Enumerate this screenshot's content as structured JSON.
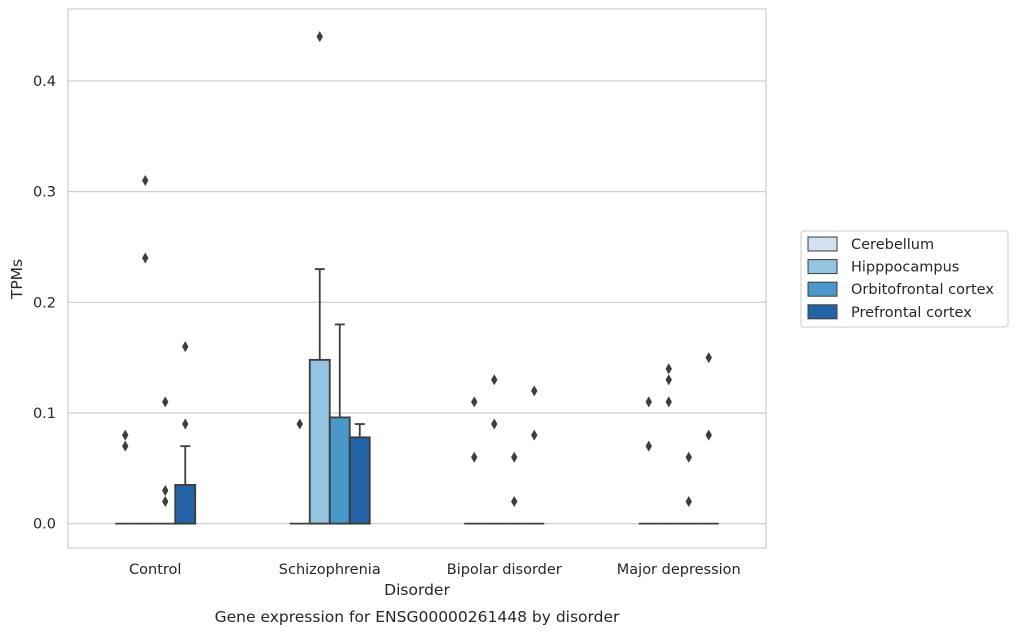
{
  "chart_data": {
    "type": "boxplot",
    "title": "",
    "caption": "Gene expression for ENSG00000261448 by disorder",
    "xlabel": "Disorder",
    "ylabel": "TPMs",
    "categories": [
      "Control",
      "Schizophrenia",
      "Bipolar disorder",
      "Major depression"
    ],
    "ylim": [
      -0.022,
      0.465
    ],
    "yticks": [
      0.0,
      0.1,
      0.2,
      0.3,
      0.4
    ],
    "ytick_labels": [
      "0.0",
      "0.1",
      "0.2",
      "0.3",
      "0.4"
    ],
    "grid": "horizontal",
    "legend_position": "center-right",
    "series": [
      {
        "name": "Cerebellum",
        "color": "#d0e1f2",
        "boxes": [
          {
            "q1": 0,
            "median": 0,
            "q3": 0,
            "whisker_low": 0,
            "whisker_high": 0,
            "outliers": [
              0.08,
              0.07
            ]
          },
          {
            "q1": 0,
            "median": 0,
            "q3": 0,
            "whisker_low": 0,
            "whisker_high": 0,
            "outliers": [
              0.09
            ]
          },
          {
            "q1": 0,
            "median": 0,
            "q3": 0,
            "whisker_low": 0,
            "whisker_high": 0,
            "outliers": [
              0.11,
              0.06
            ]
          },
          {
            "q1": 0,
            "median": 0,
            "q3": 0,
            "whisker_low": 0,
            "whisker_high": 0,
            "outliers": [
              0.11,
              0.07
            ]
          }
        ]
      },
      {
        "name": "Hipppocampus",
        "color": "#94c4df",
        "boxes": [
          {
            "q1": 0,
            "median": 0,
            "q3": 0,
            "whisker_low": 0,
            "whisker_high": 0,
            "outliers": [
              0.31,
              0.24
            ]
          },
          {
            "q1": 0,
            "median": 0,
            "q3": 0.148,
            "whisker_low": 0,
            "whisker_high": 0.23,
            "outliers": [
              0.44
            ]
          },
          {
            "q1": 0,
            "median": 0,
            "q3": 0,
            "whisker_low": 0,
            "whisker_high": 0,
            "outliers": [
              0.13,
              0.09
            ]
          },
          {
            "q1": 0,
            "median": 0,
            "q3": 0,
            "whisker_low": 0,
            "whisker_high": 0,
            "outliers": [
              0.14,
              0.13,
              0.11
            ]
          }
        ]
      },
      {
        "name": "Orbitofrontal cortex",
        "color": "#4a98c9",
        "boxes": [
          {
            "q1": 0,
            "median": 0,
            "q3": 0,
            "whisker_low": 0,
            "whisker_high": 0,
            "outliers": [
              0.11,
              0.03,
              0.02
            ]
          },
          {
            "q1": 0,
            "median": 0,
            "q3": 0.096,
            "whisker_low": 0,
            "whisker_high": 0.18,
            "outliers": []
          },
          {
            "q1": 0,
            "median": 0,
            "q3": 0,
            "whisker_low": 0,
            "whisker_high": 0,
            "outliers": [
              0.06,
              0.02
            ]
          },
          {
            "q1": 0,
            "median": 0,
            "q3": 0,
            "whisker_low": 0,
            "whisker_high": 0,
            "outliers": [
              0.06,
              0.02
            ]
          }
        ]
      },
      {
        "name": "Prefrontal cortex",
        "color": "#2363a6",
        "boxes": [
          {
            "q1": 0,
            "median": 0,
            "q3": 0.035,
            "whisker_low": 0,
            "whisker_high": 0.07,
            "outliers": [
              0.16,
              0.09
            ]
          },
          {
            "q1": 0,
            "median": 0,
            "q3": 0.078,
            "whisker_low": 0,
            "whisker_high": 0.09,
            "outliers": []
          },
          {
            "q1": 0,
            "median": 0,
            "q3": 0,
            "whisker_low": 0,
            "whisker_high": 0,
            "outliers": [
              0.12,
              0.08
            ]
          },
          {
            "q1": 0,
            "median": 0,
            "q3": 0,
            "whisker_low": 0,
            "whisker_high": 0,
            "outliers": [
              0.15,
              0.08
            ]
          }
        ]
      }
    ]
  },
  "colors": {
    "grid": "#cccccc",
    "frame": "#cccccc",
    "line": "#3d3d3d",
    "text": "#262626"
  }
}
